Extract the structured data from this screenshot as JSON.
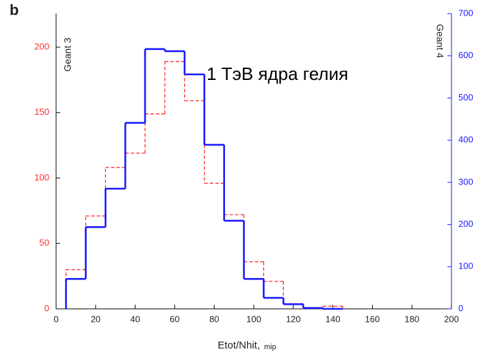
{
  "chart_data": {
    "type": "histogram",
    "panel_label": "b",
    "annotation": "1 ТэВ ядра гелия",
    "xlabel": "Etot/Nhit,",
    "xlabel_unit": "mip",
    "bins": [
      5,
      15,
      25,
      35,
      45,
      55,
      65,
      75,
      85,
      95,
      105,
      115,
      125,
      135,
      145
    ],
    "series": [
      {
        "name": "Geant 3",
        "color": "#ff2a2a",
        "dashed": true,
        "axis": "y",
        "values": [
          30,
          71,
          108,
          119,
          149,
          189,
          159,
          96,
          72,
          36,
          21,
          4,
          1,
          2
        ]
      },
      {
        "name": "Geant 4",
        "color": "#1a1aff",
        "dashed": false,
        "axis": "y2",
        "values": [
          71,
          194,
          285,
          441,
          616,
          611,
          556,
          389,
          209,
          71,
          26,
          11,
          2,
          0
        ]
      }
    ],
    "xlim": [
      0,
      200
    ],
    "xticks": [
      0,
      20,
      40,
      60,
      80,
      100,
      120,
      140,
      160,
      180,
      200
    ],
    "ylim": [
      0,
      225.6
    ],
    "yticks": [
      0,
      50,
      100,
      150,
      200
    ],
    "ytick_color": "#ff2a2a",
    "y2lim": [
      0,
      700
    ],
    "y2ticks": [
      0,
      100,
      200,
      300,
      400,
      500,
      600,
      700
    ],
    "y2tick_color": "#1a1aff"
  }
}
